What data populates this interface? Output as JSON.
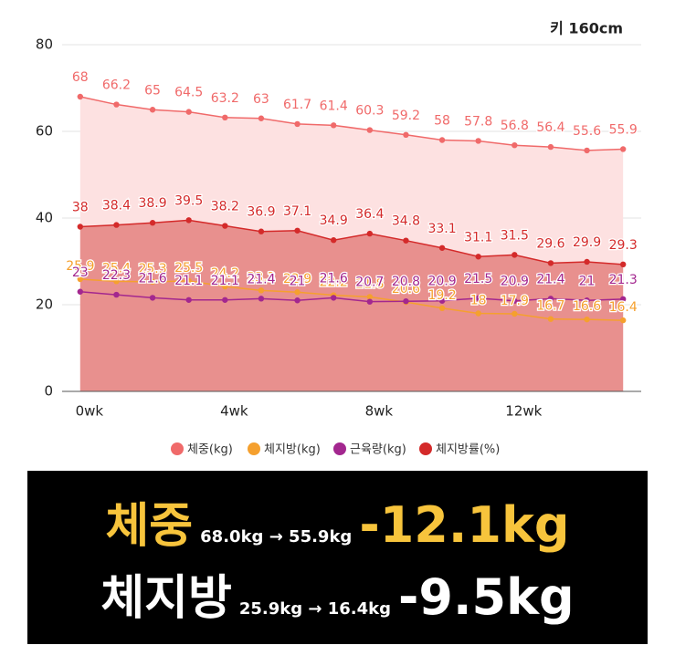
{
  "chart_data": {
    "type": "line",
    "annotation": "키 160cm",
    "x": [
      0,
      1,
      2,
      3,
      4,
      5,
      6,
      7,
      8,
      9,
      10,
      11,
      12,
      13,
      14,
      15
    ],
    "xlim": [
      -0.5,
      15.5
    ],
    "xticks": [
      {
        "value": 0,
        "label": "0wk"
      },
      {
        "value": 4,
        "label": "4wk"
      },
      {
        "value": 8,
        "label": "8wk"
      },
      {
        "value": 12,
        "label": "12wk"
      }
    ],
    "ylim": [
      0,
      80
    ],
    "yticks": [
      0,
      20,
      40,
      60,
      80
    ],
    "grid": true,
    "legend": "bottom",
    "series": [
      {
        "name": "체중(kg)",
        "color": "#f06a6a",
        "area": "#fde1e1",
        "values": [
          68,
          66.2,
          65,
          64.5,
          63.2,
          63,
          61.7,
          61.4,
          60.3,
          59.2,
          58,
          57.8,
          56.8,
          56.4,
          55.6,
          55.9
        ]
      },
      {
        "name": "체지방(kg)",
        "color": "#f5a02e",
        "values": [
          25.9,
          25.4,
          25.3,
          25.5,
          24.2,
          23.3,
          22.9,
          22.2,
          21.8,
          20.6,
          19.2,
          18,
          17.9,
          16.7,
          16.6,
          16.4
        ]
      },
      {
        "name": "근육량(kg)",
        "color": "#a3278f",
        "values": [
          23,
          22.3,
          21.6,
          21.1,
          21.1,
          21.4,
          21,
          21.6,
          20.7,
          20.8,
          20.9,
          21.5,
          20.9,
          21.4,
          21,
          21.3
        ]
      },
      {
        "name": "체지방률(%)",
        "color": "#d42a2a",
        "area": "#e8908e",
        "values": [
          38,
          38.4,
          38.9,
          39.5,
          38.2,
          36.9,
          37.1,
          34.9,
          36.4,
          34.8,
          33.1,
          31.1,
          31.5,
          29.6,
          29.9,
          29.3
        ]
      }
    ]
  },
  "banner": {
    "lines": [
      {
        "label": "체중",
        "detail": "68.0kg → 55.9kg",
        "change": "-12.1kg"
      },
      {
        "label": "체지방",
        "detail": "25.9kg → 16.4kg",
        "change": "-9.5kg"
      }
    ]
  }
}
